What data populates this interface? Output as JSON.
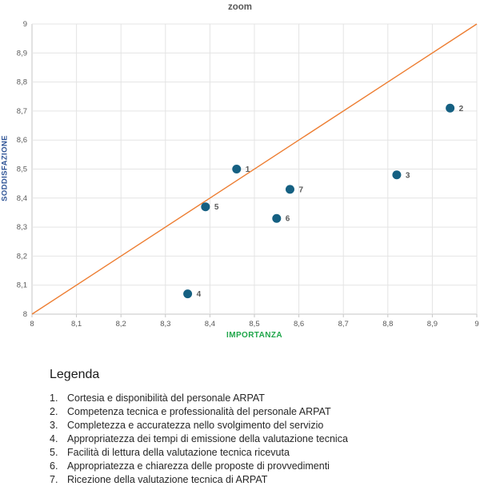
{
  "chart": {
    "title": "zoom",
    "colors": {
      "point": "#156082",
      "point_label": "#595959",
      "reference_line": "#ED7D31",
      "grid": "#E4E4E4",
      "axis": "#C6C6C6",
      "tick_label": "#595959",
      "title": "#595959",
      "xlabel": "#1FA64A",
      "ylabel": "#2F5496"
    }
  },
  "chart_data": {
    "type": "scatter",
    "title": "zoom",
    "xlabel": "IMPORTANZA",
    "ylabel": "SODDISFAZIONE",
    "xlim": [
      8,
      9
    ],
    "ylim": [
      8,
      9
    ],
    "tick_step": 0.1,
    "decimal_separator": ",",
    "grid": true,
    "legend_position": "none",
    "reference_line": {
      "from": [
        8,
        8
      ],
      "to": [
        9,
        9
      ]
    },
    "points": [
      {
        "label": "1",
        "x": 8.46,
        "y": 8.5
      },
      {
        "label": "2",
        "x": 8.94,
        "y": 8.71
      },
      {
        "label": "3",
        "x": 8.82,
        "y": 8.48
      },
      {
        "label": "4",
        "x": 8.35,
        "y": 8.07
      },
      {
        "label": "5",
        "x": 8.39,
        "y": 8.37
      },
      {
        "label": "6",
        "x": 8.55,
        "y": 8.33
      },
      {
        "label": "7",
        "x": 8.58,
        "y": 8.43
      }
    ]
  },
  "legend": {
    "heading": "Legenda",
    "items": [
      {
        "num": "1.",
        "text": "Cortesia e disponibilità del personale ARPAT"
      },
      {
        "num": "2.",
        "text": "Competenza tecnica e professionalità del personale ARPAT"
      },
      {
        "num": "3.",
        "text": "Completezza e accuratezza nello svolgimento del servizio"
      },
      {
        "num": "4.",
        "text": "Appropriatezza dei tempi di emissione della valutazione tecnica"
      },
      {
        "num": "5.",
        "text": "Facilità di lettura della valutazione tecnica ricevuta"
      },
      {
        "num": "6.",
        "text": "Appropriatezza e chiarezza delle proposte di provvedimenti"
      },
      {
        "num": "7.",
        "text": "Ricezione della valutazione tecnica di ARPAT"
      }
    ]
  }
}
